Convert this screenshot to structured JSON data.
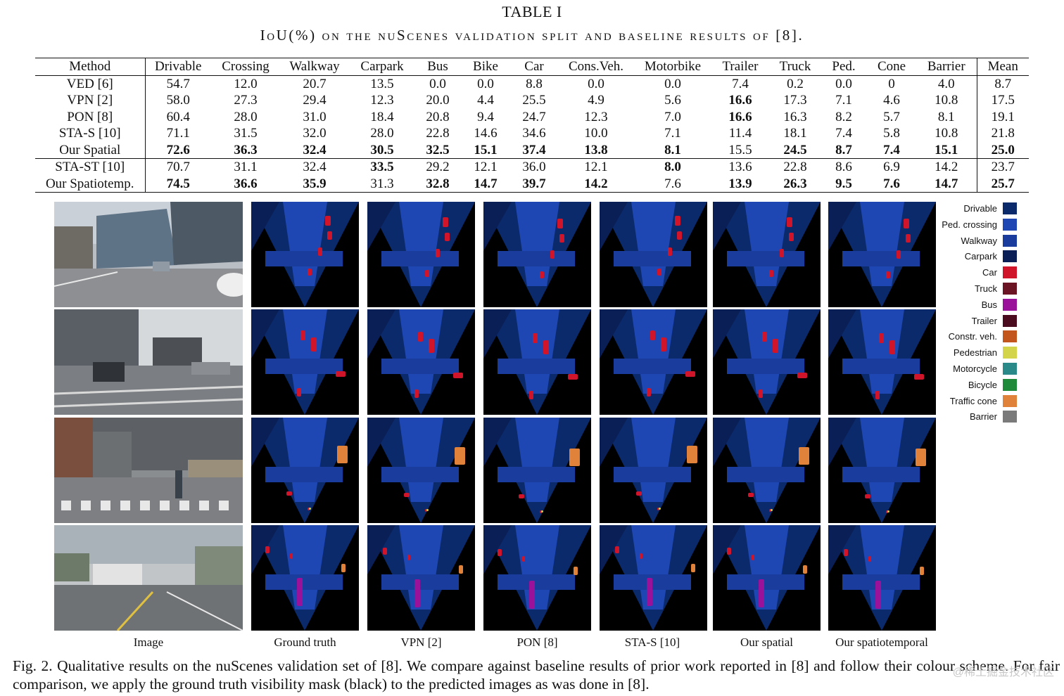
{
  "table": {
    "label": "TABLE I",
    "caption": "IoU(%) on the nuScenes validation split and baseline results of [8].",
    "columns": [
      "Method",
      "Drivable",
      "Crossing",
      "Walkway",
      "Carpark",
      "Bus",
      "Bike",
      "Car",
      "Cons.Veh.",
      "Motorbike",
      "Trailer",
      "Truck",
      "Ped.",
      "Cone",
      "Barrier",
      "Mean"
    ],
    "rows": [
      {
        "cells": [
          "VED [6]",
          "54.7",
          "12.0",
          "20.7",
          "13.5",
          "0.0",
          "0.0",
          "8.8",
          "0.0",
          "0.0",
          "7.4",
          "0.2",
          "0.0",
          "0",
          "4.0",
          "8.7"
        ],
        "bold": []
      },
      {
        "cells": [
          "VPN [2]",
          "58.0",
          "27.3",
          "29.4",
          "12.3",
          "20.0",
          "4.4",
          "25.5",
          "4.9",
          "5.6",
          "16.6",
          "17.3",
          "7.1",
          "4.6",
          "10.8",
          "17.5"
        ],
        "bold": [
          10
        ]
      },
      {
        "cells": [
          "PON [8]",
          "60.4",
          "28.0",
          "31.0",
          "18.4",
          "20.8",
          "9.4",
          "24.7",
          "12.3",
          "7.0",
          "16.6",
          "16.3",
          "8.2",
          "5.7",
          "8.1",
          "19.1"
        ],
        "bold": [
          10
        ]
      },
      {
        "cells": [
          "STA-S [10]",
          "71.1",
          "31.5",
          "32.0",
          "28.0",
          "22.8",
          "14.6",
          "34.6",
          "10.0",
          "7.1",
          "11.4",
          "18.1",
          "7.4",
          "5.8",
          "10.8",
          "21.8"
        ],
        "bold": []
      },
      {
        "cells": [
          "Our Spatial",
          "72.6",
          "36.3",
          "32.4",
          "30.5",
          "32.5",
          "15.1",
          "37.4",
          "13.8",
          "8.1",
          "15.5",
          "24.5",
          "8.7",
          "7.4",
          "15.1",
          "25.0"
        ],
        "bold": [
          1,
          2,
          3,
          4,
          5,
          6,
          7,
          8,
          9,
          11,
          12,
          13,
          14,
          15
        ]
      },
      {
        "cells": [
          "STA-ST [10]",
          "70.7",
          "31.1",
          "32.4",
          "33.5",
          "29.2",
          "12.1",
          "36.0",
          "12.1",
          "8.0",
          "13.6",
          "22.8",
          "8.6",
          "6.9",
          "14.2",
          "23.7"
        ],
        "bold": [
          4,
          9
        ]
      },
      {
        "cells": [
          "Our Spatiotemp.",
          "74.5",
          "36.6",
          "35.9",
          "31.3",
          "32.8",
          "14.7",
          "39.7",
          "14.2",
          "7.6",
          "13.9",
          "26.3",
          "9.5",
          "7.6",
          "14.7",
          "25.7"
        ],
        "bold": [
          1,
          2,
          3,
          5,
          6,
          7,
          8,
          10,
          11,
          12,
          13,
          14,
          15
        ]
      }
    ]
  },
  "figure": {
    "columns": [
      "Image",
      "Ground truth",
      "VPN [2]",
      "PON [8]",
      "STA-S [10]",
      "Our spatial",
      "Our spatiotemporal"
    ],
    "legend": [
      {
        "label": "Drivable",
        "color": "#0b2a6b"
      },
      {
        "label": "Ped. crossing",
        "color": "#1f47b4"
      },
      {
        "label": "Walkway",
        "color": "#1a3c9c"
      },
      {
        "label": "Carpark",
        "color": "#0a1f55"
      },
      {
        "label": "Car",
        "color": "#d0142a"
      },
      {
        "label": "Truck",
        "color": "#6a1424"
      },
      {
        "label": "Bus",
        "color": "#9a119a"
      },
      {
        "label": "Trailer",
        "color": "#4a0c1e"
      },
      {
        "label": "Constr. veh.",
        "color": "#c2561c"
      },
      {
        "label": "Pedestrian",
        "color": "#d4d44a"
      },
      {
        "label": "Motorcycle",
        "color": "#2a8a8a"
      },
      {
        "label": "Bicycle",
        "color": "#1f8a3a"
      },
      {
        "label": "Traffic cone",
        "color": "#e0823a"
      },
      {
        "label": "Barrier",
        "color": "#7a7a7a"
      }
    ],
    "caption": "Fig. 2.   Qualitative results on the nuScenes validation set of [8]. We compare against baseline results of prior work reported in [8] and follow their colour scheme. For fair comparison, we apply the ground truth visibility mask (black) to the predicted images as was done in [8].",
    "watermark": "@稀土掘金技术社区"
  }
}
